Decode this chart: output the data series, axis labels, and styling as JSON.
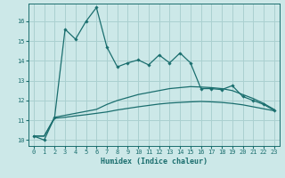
{
  "xlabel": "Humidex (Indice chaleur)",
  "bg_color": "#cce8e8",
  "grid_color": "#aad0d0",
  "line_color": "#1a6e6e",
  "xlim": [
    -0.5,
    23.5
  ],
  "ylim": [
    9.7,
    16.9
  ],
  "yticks": [
    10,
    11,
    12,
    13,
    14,
    15,
    16
  ],
  "xticks": [
    0,
    1,
    2,
    3,
    4,
    5,
    6,
    7,
    8,
    9,
    10,
    11,
    12,
    13,
    14,
    15,
    16,
    17,
    18,
    19,
    20,
    21,
    22,
    23
  ],
  "line1_x": [
    0,
    1,
    2,
    3,
    4,
    5,
    6,
    7,
    8,
    9,
    10,
    11,
    12,
    13,
    14,
    15,
    16,
    17,
    18,
    19,
    20,
    21,
    22,
    23
  ],
  "line1_y": [
    10.2,
    10.0,
    11.15,
    15.6,
    15.1,
    16.0,
    16.7,
    14.7,
    13.7,
    13.9,
    14.05,
    13.8,
    14.3,
    13.9,
    14.4,
    13.9,
    12.6,
    12.6,
    12.55,
    12.75,
    12.2,
    12.0,
    11.8,
    11.5
  ],
  "line2_x": [
    0,
    1,
    2,
    3,
    4,
    5,
    6,
    7,
    8,
    9,
    10,
    11,
    12,
    13,
    14,
    15,
    16,
    17,
    18,
    19,
    20,
    21,
    22,
    23
  ],
  "line2_y": [
    10.2,
    10.2,
    11.15,
    11.25,
    11.35,
    11.45,
    11.55,
    11.8,
    12.0,
    12.15,
    12.3,
    12.4,
    12.5,
    12.6,
    12.65,
    12.7,
    12.68,
    12.65,
    12.6,
    12.5,
    12.3,
    12.1,
    11.85,
    11.55
  ],
  "line3_x": [
    0,
    1,
    2,
    3,
    4,
    5,
    6,
    7,
    8,
    9,
    10,
    11,
    12,
    13,
    14,
    15,
    16,
    17,
    18,
    19,
    20,
    21,
    22,
    23
  ],
  "line3_y": [
    10.2,
    10.2,
    11.1,
    11.15,
    11.22,
    11.28,
    11.35,
    11.42,
    11.52,
    11.6,
    11.68,
    11.75,
    11.82,
    11.87,
    11.9,
    11.93,
    11.95,
    11.93,
    11.9,
    11.85,
    11.78,
    11.68,
    11.58,
    11.48
  ]
}
